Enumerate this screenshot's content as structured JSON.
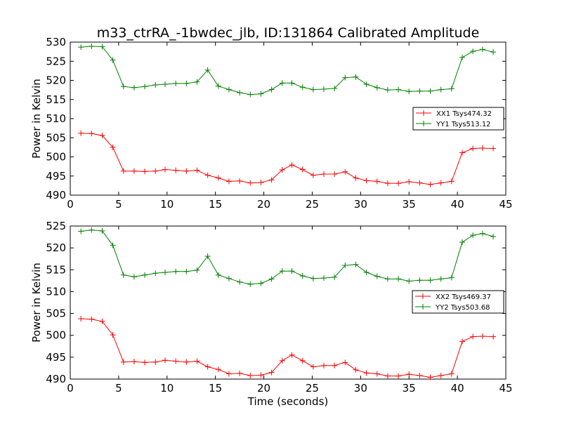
{
  "title": "m33_ctrRA_-1bwdec_jlb, ID:131864 Calibrated Amplitude",
  "colors": {
    "red": "#ff0000",
    "green": "#008000"
  },
  "chart_data": [
    {
      "type": "line",
      "xlabel": "",
      "ylabel": "Power in Kelvin",
      "xlim": [
        0,
        45
      ],
      "ylim": [
        490,
        530
      ],
      "xticks": [
        0,
        5,
        10,
        15,
        20,
        25,
        30,
        35,
        40,
        45
      ],
      "yticks": [
        490,
        495,
        500,
        505,
        510,
        515,
        520,
        525,
        530
      ],
      "grid": false,
      "legend_position": "center-right",
      "marker": "+",
      "series": [
        {
          "name": "XX1 Tsys474.32",
          "color": "#ff0000",
          "x": [
            1.1,
            2.2,
            3.3,
            4.4,
            5.5,
            6.6,
            7.7,
            8.8,
            9.8,
            10.9,
            12.0,
            13.1,
            14.2,
            15.3,
            16.4,
            17.5,
            18.6,
            19.7,
            20.8,
            21.9,
            22.9,
            24.0,
            25.1,
            26.2,
            27.3,
            28.4,
            29.5,
            30.6,
            31.7,
            32.8,
            33.9,
            35.0,
            36.1,
            37.2,
            38.3,
            39.4,
            40.5,
            41.6,
            42.6,
            43.7
          ],
          "y": [
            506.2,
            506.1,
            505.6,
            502.5,
            496.3,
            496.3,
            496.2,
            496.3,
            496.7,
            496.5,
            496.3,
            496.5,
            495.2,
            494.5,
            493.6,
            493.7,
            493.2,
            493.3,
            494.0,
            496.6,
            497.9,
            496.7,
            495.2,
            495.5,
            495.5,
            496.1,
            494.5,
            493.8,
            493.6,
            493.1,
            493.1,
            493.5,
            493.2,
            492.8,
            493.2,
            493.6,
            501.1,
            502.2,
            502.3,
            502.2
          ],
          "note": ""
        },
        {
          "name": "YY1 Tsys513.12",
          "color": "#008000",
          "x": [
            1.1,
            2.2,
            3.3,
            4.4,
            5.5,
            6.6,
            7.7,
            8.8,
            9.8,
            10.9,
            12.0,
            13.1,
            14.2,
            15.3,
            16.4,
            17.5,
            18.6,
            19.7,
            20.8,
            21.9,
            22.9,
            24.0,
            25.1,
            26.2,
            27.3,
            28.4,
            29.5,
            30.6,
            31.7,
            32.8,
            33.9,
            35.0,
            36.1,
            37.2,
            38.3,
            39.4,
            40.5,
            41.6,
            42.6,
            43.7
          ],
          "y": [
            528.7,
            528.9,
            528.8,
            525.3,
            518.4,
            518.1,
            518.4,
            518.8,
            519.0,
            519.2,
            519.2,
            519.6,
            522.7,
            518.5,
            517.6,
            516.8,
            516.3,
            516.5,
            517.6,
            519.3,
            519.3,
            518.2,
            517.6,
            517.7,
            517.9,
            520.7,
            520.9,
            519.0,
            518.1,
            517.5,
            517.6,
            517.1,
            517.2,
            517.2,
            517.6,
            517.8,
            526.0,
            527.6,
            528.1,
            527.4
          ],
          "note": ""
        }
      ]
    },
    {
      "type": "line",
      "xlabel": "Time (seconds)",
      "ylabel": "Power in Kelvin",
      "xlim": [
        0,
        45
      ],
      "ylim": [
        490,
        525
      ],
      "xticks": [
        0,
        5,
        10,
        15,
        20,
        25,
        30,
        35,
        40,
        45
      ],
      "yticks": [
        490,
        495,
        500,
        505,
        510,
        515,
        520,
        525
      ],
      "grid": false,
      "legend_position": "center-right",
      "marker": "+",
      "series": [
        {
          "name": "XX2 Tsys469.37",
          "color": "#ff0000",
          "x": [
            1.1,
            2.2,
            3.3,
            4.4,
            5.5,
            6.6,
            7.7,
            8.8,
            9.8,
            10.9,
            12.0,
            13.1,
            14.2,
            15.3,
            16.4,
            17.5,
            18.6,
            19.7,
            20.8,
            21.9,
            22.9,
            24.0,
            25.1,
            26.2,
            27.3,
            28.4,
            29.5,
            30.6,
            31.7,
            32.8,
            33.9,
            35.0,
            36.1,
            37.2,
            38.3,
            39.4,
            40.5,
            41.6,
            42.6,
            43.7
          ],
          "y": [
            503.8,
            503.7,
            503.2,
            500.1,
            493.9,
            494.0,
            493.8,
            493.9,
            494.3,
            494.1,
            493.9,
            494.1,
            492.8,
            492.2,
            491.2,
            491.3,
            490.8,
            490.9,
            491.5,
            494.2,
            495.5,
            494.2,
            492.8,
            493.1,
            493.1,
            493.8,
            492.1,
            491.4,
            491.2,
            490.7,
            490.7,
            491.1,
            490.8,
            490.4,
            490.8,
            491.2,
            498.6,
            499.7,
            499.8,
            499.7
          ],
          "note": ""
        },
        {
          "name": "YY2 Tsys503.68",
          "color": "#008000",
          "x": [
            1.1,
            2.2,
            3.3,
            4.4,
            5.5,
            6.6,
            7.7,
            8.8,
            9.8,
            10.9,
            12.0,
            13.1,
            14.2,
            15.3,
            16.4,
            17.5,
            18.6,
            19.7,
            20.8,
            21.9,
            22.9,
            24.0,
            25.1,
            26.2,
            27.3,
            28.4,
            29.5,
            30.6,
            31.7,
            32.8,
            33.9,
            35.0,
            36.1,
            37.2,
            38.3,
            39.4,
            40.5,
            41.6,
            42.6,
            43.7
          ],
          "y": [
            523.8,
            524.1,
            523.9,
            520.6,
            513.8,
            513.4,
            513.8,
            514.2,
            514.4,
            514.6,
            514.6,
            514.9,
            518.1,
            513.8,
            513.0,
            512.2,
            511.7,
            511.9,
            512.9,
            514.7,
            514.7,
            513.6,
            513.0,
            513.1,
            513.3,
            516.0,
            516.2,
            514.4,
            513.5,
            512.9,
            512.9,
            512.4,
            512.6,
            512.6,
            512.9,
            513.2,
            521.3,
            522.9,
            523.3,
            522.6
          ],
          "note": ""
        }
      ]
    }
  ]
}
